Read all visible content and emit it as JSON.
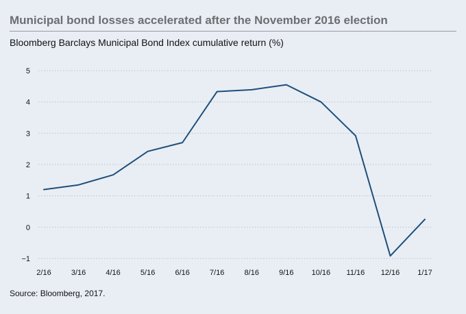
{
  "header": {
    "title": "Municipal bond losses accelerated after the November 2016 election",
    "subtitle": "Bloomberg Barclays Municipal Bond Index cumulative return (%)"
  },
  "footer": {
    "source": "Source: Bloomberg, 2017."
  },
  "colors": {
    "background": "#e8eef4",
    "line": "#1f4e79",
    "grid": "#b9c3cd",
    "title": "#6d6e71"
  },
  "chart_data": {
    "type": "line",
    "title": "Municipal bond losses accelerated after the November 2016 election",
    "subtitle": "Bloomberg Barclays Municipal Bond Index cumulative return (%)",
    "xlabel": "",
    "ylabel": "",
    "ylim": [
      -1,
      5
    ],
    "yticks": [
      "5",
      "4",
      "3",
      "2",
      "1",
      "0",
      "−1"
    ],
    "ytick_values": [
      5,
      4,
      3,
      2,
      1,
      0,
      -1
    ],
    "grid": "horizontal dotted",
    "legend": "none",
    "categories": [
      "2/16",
      "3/16",
      "4/16",
      "5/16",
      "6/16",
      "7/16",
      "8/16",
      "9/16",
      "10/16",
      "11/16",
      "12/16",
      "1/17"
    ],
    "series": [
      {
        "values": [
          1.2,
          1.35,
          1.67,
          2.42,
          2.7,
          4.33,
          4.39,
          4.55,
          4.0,
          2.92,
          -0.92,
          0.25
        ]
      }
    ]
  }
}
